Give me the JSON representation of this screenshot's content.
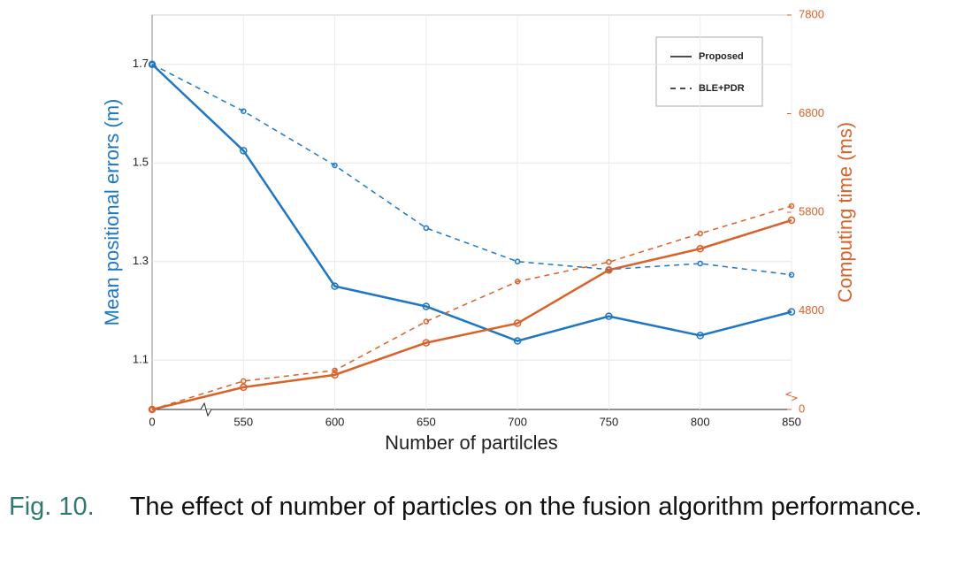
{
  "chart_data": {
    "type": "line",
    "xlabel": "Number of partilcles",
    "ylabel": "Mean positional errors (m)",
    "y2label": "Computing time (ms)",
    "categories": [
      "0",
      "550",
      "600",
      "650",
      "700",
      "750",
      "800",
      "850"
    ],
    "series": [
      {
        "color": "#1f77c4",
        "style": "solid",
        "axis": "y",
        "values": [
          1.7,
          1.525,
          1.25,
          1.209,
          1.139,
          1.189,
          1.15,
          1.198
        ]
      },
      {
        "color": "#1f77c4",
        "style": "dashed",
        "axis": "y",
        "values": [
          1.7,
          1.605,
          1.495,
          1.368,
          1.3,
          1.284,
          1.296,
          1.273
        ]
      },
      {
        "color": "#d9622b",
        "style": "solid",
        "axis": "y2",
        "values": [
          0,
          4025,
          4151,
          4476,
          4674,
          5214,
          5430,
          5719
        ]
      },
      {
        "color": "#d9622b",
        "style": "dashed",
        "axis": "y2",
        "values": [
          0,
          4088,
          4196,
          4692,
          5097,
          5295,
          5584,
          5863
        ]
      }
    ],
    "legend": [
      {
        "label": "Proposed",
        "style": "solid"
      },
      {
        "label": "BLE+PDR",
        "style": "dashed"
      }
    ],
    "ylim": [
      1.0,
      1.8
    ],
    "yticks": [
      1.1,
      1.3,
      1.5,
      1.7
    ],
    "y2lim": [
      0,
      7800
    ],
    "y2break": [
      0,
      3800
    ],
    "y2ticks": [
      0,
      4800,
      5800,
      6800,
      7800
    ],
    "grid": true,
    "caption": {
      "label": "Fig. 10.",
      "text": "The effect of number of particles on the fusion algorithm performance."
    }
  }
}
